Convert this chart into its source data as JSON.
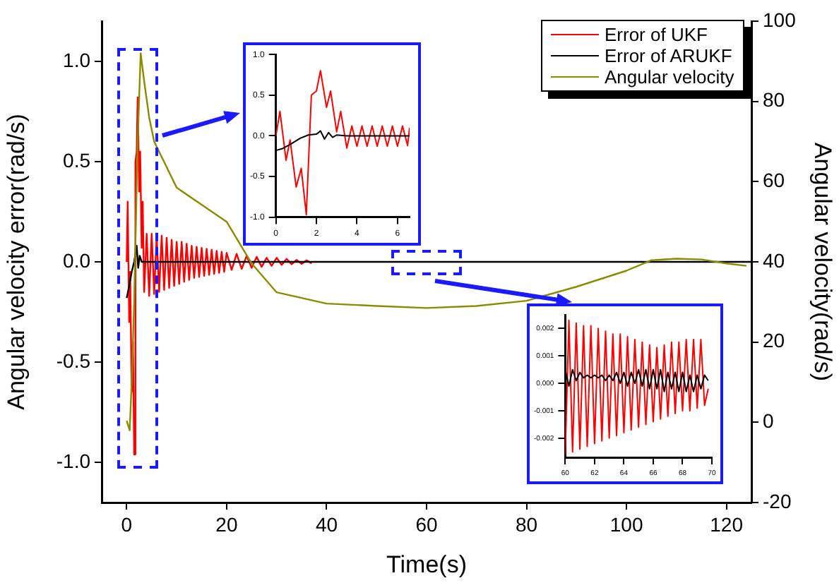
{
  "chart_data": [
    {
      "type": "line",
      "xlabel": "Time(s)",
      "ylabel": "Angular velocity error(rad/s)",
      "y2label": "Angular velocity(rad/s)",
      "xlim": [
        -5,
        125
      ],
      "xticks": [
        0,
        20,
        40,
        60,
        80,
        100,
        120
      ],
      "ylim": [
        -1.2,
        1.2
      ],
      "yticks": [
        {
          "value": -1,
          "label": "-1.0"
        },
        {
          "value": -0.5,
          "label": "-0.5"
        },
        {
          "value": 0,
          "label": "0.0"
        },
        {
          "value": 0.5,
          "label": "0.5"
        },
        {
          "value": 1,
          "label": "1.0"
        }
      ],
      "y2lim": [
        -20,
        100
      ],
      "y2ticks": [
        -20,
        0,
        20,
        40,
        60,
        80,
        100
      ],
      "legend": "top right",
      "series": [
        {
          "name": "Error of UKF",
          "color": "#ff0000",
          "x": [
            0,
            0.2,
            0.5,
            0.7,
            1,
            1.25,
            1.5,
            1.75,
            2,
            2.2,
            2.5,
            2.7,
            3,
            3.2,
            3.5,
            4,
            4.5,
            5,
            5.5,
            6,
            6.5,
            7,
            7.5,
            8,
            8.5,
            9,
            9.5,
            10,
            10.5,
            11,
            11.5,
            12,
            12.5,
            13,
            13.5,
            14,
            14.5,
            15,
            15.5,
            16,
            16.5,
            17,
            17.5,
            18,
            18.5,
            19,
            19.5,
            20,
            21,
            22,
            23,
            24,
            25,
            26,
            27,
            28,
            29,
            30,
            31,
            32,
            33,
            34,
            35,
            36,
            37
          ],
          "values": [
            0,
            0.3,
            -0.3,
            -0.05,
            -0.65,
            -0.4,
            -0.96,
            0.5,
            0.55,
            0.82,
            0.35,
            0.55,
            0.07,
            0.3,
            -0.15,
            0.14,
            -0.17,
            0.14,
            -0.16,
            0.13,
            -0.15,
            0.13,
            -0.14,
            0.12,
            -0.13,
            0.11,
            -0.12,
            0.1,
            -0.11,
            0.1,
            -0.1,
            0.09,
            -0.09,
            0.08,
            -0.08,
            0.075,
            -0.075,
            0.07,
            -0.07,
            0.065,
            -0.065,
            0.06,
            -0.06,
            0.055,
            -0.055,
            0.05,
            -0.05,
            0.045,
            -0.04,
            0.04,
            -0.035,
            0.03,
            -0.03,
            0.025,
            -0.025,
            0.02,
            -0.02,
            0.02,
            -0.015,
            0.015,
            -0.012,
            0.01,
            -0.01,
            0.008,
            -0.008
          ]
        },
        {
          "name": "Error of ARUKF",
          "color": "#000000",
          "x": [
            0,
            0.5,
            1,
            1.5,
            2,
            2.3,
            2.6,
            3,
            4,
            125
          ],
          "values": [
            -0.18,
            -0.12,
            -0.05,
            0,
            0.08,
            -0.03,
            0.03,
            0,
            0,
            0
          ]
        },
        {
          "name": "Angular velocity",
          "color": "#8b8b00",
          "axis": "y2",
          "x": [
            0,
            0.6,
            1,
            1.5,
            2.2,
            2.8,
            3.5,
            4.5,
            5.5,
            10,
            20,
            25,
            30,
            35,
            40,
            50,
            60,
            70,
            80,
            90,
            100,
            105,
            110,
            115,
            120,
            124
          ],
          "values": [
            0.4,
            -2,
            10,
            30,
            70,
            92,
            85,
            76,
            70,
            58.5,
            50,
            39.6,
            32.4,
            31,
            29.6,
            29,
            28.5,
            29,
            30.3,
            33.8,
            37.8,
            40.4,
            40.8,
            40.6,
            39.6,
            39
          ]
        }
      ]
    },
    {
      "type": "line",
      "xlim": [
        0,
        6.6
      ],
      "xticks": [
        0,
        2,
        4,
        6
      ],
      "ylim": [
        -1,
        1
      ],
      "yticks": [
        {
          "value": -1,
          "label": "-1.0"
        },
        {
          "value": -0.5,
          "label": "-0.5"
        },
        {
          "value": 0,
          "label": "0.0"
        },
        {
          "value": 0.5,
          "label": "0.5"
        },
        {
          "value": 1,
          "label": "1.0"
        }
      ],
      "series": [
        {
          "color": "#ff0000",
          "x": [
            0,
            0.2,
            0.5,
            0.7,
            1,
            1.25,
            1.5,
            1.75,
            2,
            2.2,
            2.5,
            2.7,
            3,
            3.2,
            3.5,
            3.75,
            4,
            4.25,
            4.5,
            4.75,
            5,
            5.25,
            5.5,
            5.75,
            6,
            6.25,
            6.5,
            6.6
          ],
          "values": [
            0,
            0.3,
            -0.3,
            -0.05,
            -0.63,
            -0.4,
            -0.97,
            0.5,
            0.55,
            0.8,
            0.35,
            0.55,
            0.05,
            0.3,
            -0.15,
            0.12,
            -0.13,
            0.12,
            -0.13,
            0.12,
            -0.13,
            0.12,
            -0.13,
            0.12,
            -0.13,
            0.12,
            -0.12,
            0.1
          ]
        },
        {
          "color": "#000000",
          "x": [
            0,
            0.3,
            0.75,
            1.2,
            1.6,
            2,
            2.2,
            2.4,
            2.6,
            2.8,
            3,
            3.5,
            6.6
          ],
          "values": [
            -0.18,
            -0.16,
            -0.1,
            -0.03,
            0.01,
            0.02,
            0.06,
            -0.04,
            0.04,
            -0.02,
            0.01,
            0,
            0
          ]
        }
      ]
    },
    {
      "type": "line",
      "xlim": [
        60,
        70
      ],
      "xticks": [
        60,
        62,
        64,
        66,
        68,
        70
      ],
      "ylim": [
        -0.0027,
        0.0025
      ],
      "yticks": [
        {
          "value": -0.002,
          "label": "-0.002"
        },
        {
          "value": -0.001,
          "label": "-0.001"
        },
        {
          "value": 0,
          "label": "0.000"
        },
        {
          "value": 0.001,
          "label": "0.001"
        },
        {
          "value": 0.002,
          "label": "0.002"
        }
      ],
      "series": [
        {
          "color": "#ff0000",
          "x": [
            60,
            60.25,
            60.5,
            60.75,
            61,
            61.25,
            61.5,
            61.75,
            62,
            62.25,
            62.5,
            62.75,
            63,
            63.25,
            63.5,
            63.75,
            64,
            64.25,
            64.5,
            64.75,
            65,
            65.25,
            65.5,
            65.75,
            66,
            66.25,
            66.5,
            66.75,
            67,
            67.25,
            67.5,
            67.75,
            68,
            68.25,
            68.5,
            68.75,
            69,
            69.25,
            69.5,
            69.75
          ],
          "values": [
            -0.0026,
            0.0023,
            -0.0025,
            0.0022,
            -0.0024,
            0.0021,
            -0.0023,
            0.0021,
            -0.0022,
            0.002,
            -0.0021,
            0.0019,
            -0.002,
            0.0018,
            -0.0019,
            0.0018,
            -0.0018,
            0.0017,
            -0.0017,
            0.0016,
            -0.0016,
            0.0015,
            -0.0015,
            0.0014,
            -0.0014,
            0.0013,
            -0.0013,
            0.0014,
            -0.0012,
            0.0015,
            -0.0011,
            0.0015,
            -0.001,
            0.0016,
            -0.001,
            0.0016,
            -0.0009,
            0.0016,
            -0.0008,
            -0.0002
          ]
        },
        {
          "color": "#000000",
          "x": [
            60,
            60.25,
            60.5,
            60.75,
            61,
            61.25,
            61.5,
            61.75,
            62,
            62.25,
            62.5,
            62.75,
            63,
            63.25,
            63.5,
            63.75,
            64,
            64.25,
            64.5,
            64.75,
            65,
            65.25,
            65.5,
            65.75,
            66,
            66.25,
            66.5,
            66.75,
            67,
            67.25,
            67.5,
            67.75,
            68,
            68.25,
            68.5,
            68.75,
            69,
            69.25,
            69.5,
            69.75
          ],
          "values": [
            0.0005,
            -0.0001,
            0.0005,
            0.0001,
            0.0004,
            0.0002,
            0.0003,
            0.0002,
            0.0003,
            0.0002,
            0.0003,
            0.0001,
            0.0003,
            0.0001,
            0.0004,
            0,
            0.0004,
            -0.0001,
            0.0004,
            0,
            0.0005,
            -0.0001,
            0.0005,
            -0.0002,
            0.0005,
            -0.0002,
            0.0005,
            -0.0003,
            0.0004,
            -0.0002,
            0.0004,
            -0.0003,
            0.0004,
            -0.0003,
            0.0003,
            -0.0003,
            0.0003,
            -0.0002,
            0.0003,
            0.0001
          ]
        }
      ]
    }
  ]
}
